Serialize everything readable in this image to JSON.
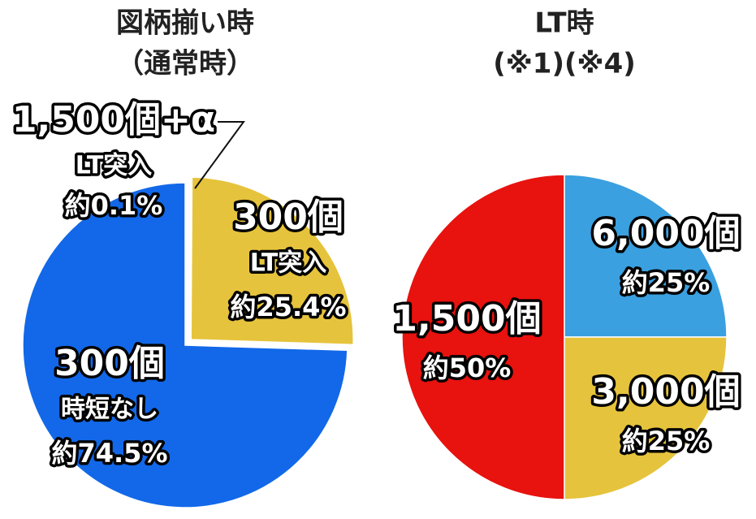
{
  "chart_data": [
    {
      "type": "pie",
      "title": "図柄揃い時",
      "subtitle": "（通常時）",
      "categories": [
        "1,500個+α",
        "300個",
        "300個"
      ],
      "descriptions": [
        "LT突入",
        "LT突入",
        "時短なし"
      ],
      "values": [
        0.1,
        25.4,
        74.5
      ],
      "value_labels": [
        "約0.1%",
        "約25.4%",
        "約74.5%"
      ],
      "colors": [
        "#e0246e",
        "#e6c33c",
        "#1268e8"
      ]
    },
    {
      "type": "pie",
      "title": "LT時",
      "subtitle": "(※1)(※4)",
      "categories": [
        "6,000個",
        "3,000個",
        "1,500個"
      ],
      "values": [
        25,
        25,
        50
      ],
      "value_labels": [
        "約25%",
        "約25%",
        "約50%"
      ],
      "colors": [
        "#3aa0e0",
        "#e6c33c",
        "#e8120e"
      ]
    }
  ]
}
